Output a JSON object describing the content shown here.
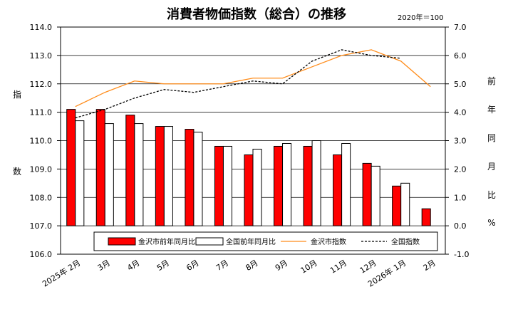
{
  "chart_data": {
    "type": "bar+line",
    "title": "消費者物価指数（総合）の推移",
    "note": "2020年＝100",
    "categories": [
      "2025年 2月",
      "3月",
      "4月",
      "5月",
      "6月",
      "7月",
      "8月",
      "9月",
      "10月",
      "11月",
      "12月",
      "2026年 1月",
      "2月"
    ],
    "series": [
      {
        "name": "金沢市前年同月比",
        "kind": "bar",
        "axis": "right",
        "color": "#ff0000",
        "values": [
          4.1,
          4.1,
          3.9,
          3.5,
          3.4,
          2.8,
          2.5,
          2.8,
          2.8,
          2.5,
          2.2,
          1.4,
          0.6
        ]
      },
      {
        "name": "全国前年同月比",
        "kind": "bar",
        "axis": "right",
        "color": "#ffffff",
        "values": [
          3.7,
          3.6,
          3.6,
          3.5,
          3.3,
          2.8,
          2.7,
          2.9,
          3.0,
          2.9,
          2.1,
          1.5,
          null
        ]
      },
      {
        "name": "金沢市指数",
        "kind": "line",
        "axis": "left",
        "color": "#ff8c1a",
        "values": [
          111.2,
          111.7,
          112.1,
          112.0,
          112.0,
          112.0,
          112.2,
          112.2,
          112.6,
          113.0,
          113.2,
          112.8,
          111.9
        ]
      },
      {
        "name": "全国指数",
        "kind": "dashed-line",
        "axis": "left",
        "color": "#000000",
        "values": [
          110.8,
          111.1,
          111.5,
          111.8,
          111.7,
          111.9,
          112.1,
          112.0,
          112.8,
          113.2,
          113.0,
          112.9,
          null
        ]
      }
    ],
    "left_axis": {
      "label_chars": [
        "指",
        "数"
      ],
      "ylim": [
        106.0,
        114.0
      ],
      "ticks": [
        "106.0",
        "107.0",
        "108.0",
        "109.0",
        "110.0",
        "111.0",
        "112.0",
        "113.0",
        "114.0"
      ]
    },
    "right_axis": {
      "label_chars": [
        "前",
        "年",
        "同",
        "月",
        "比",
        "%"
      ],
      "ylim": [
        -1.0,
        7.0
      ],
      "ticks": [
        "-1.0",
        "0.0",
        "1.0",
        "2.0",
        "3.0",
        "4.0",
        "5.0",
        "6.0",
        "7.0"
      ]
    },
    "grid": "horizontal",
    "legend_position": "bottom-inside"
  }
}
